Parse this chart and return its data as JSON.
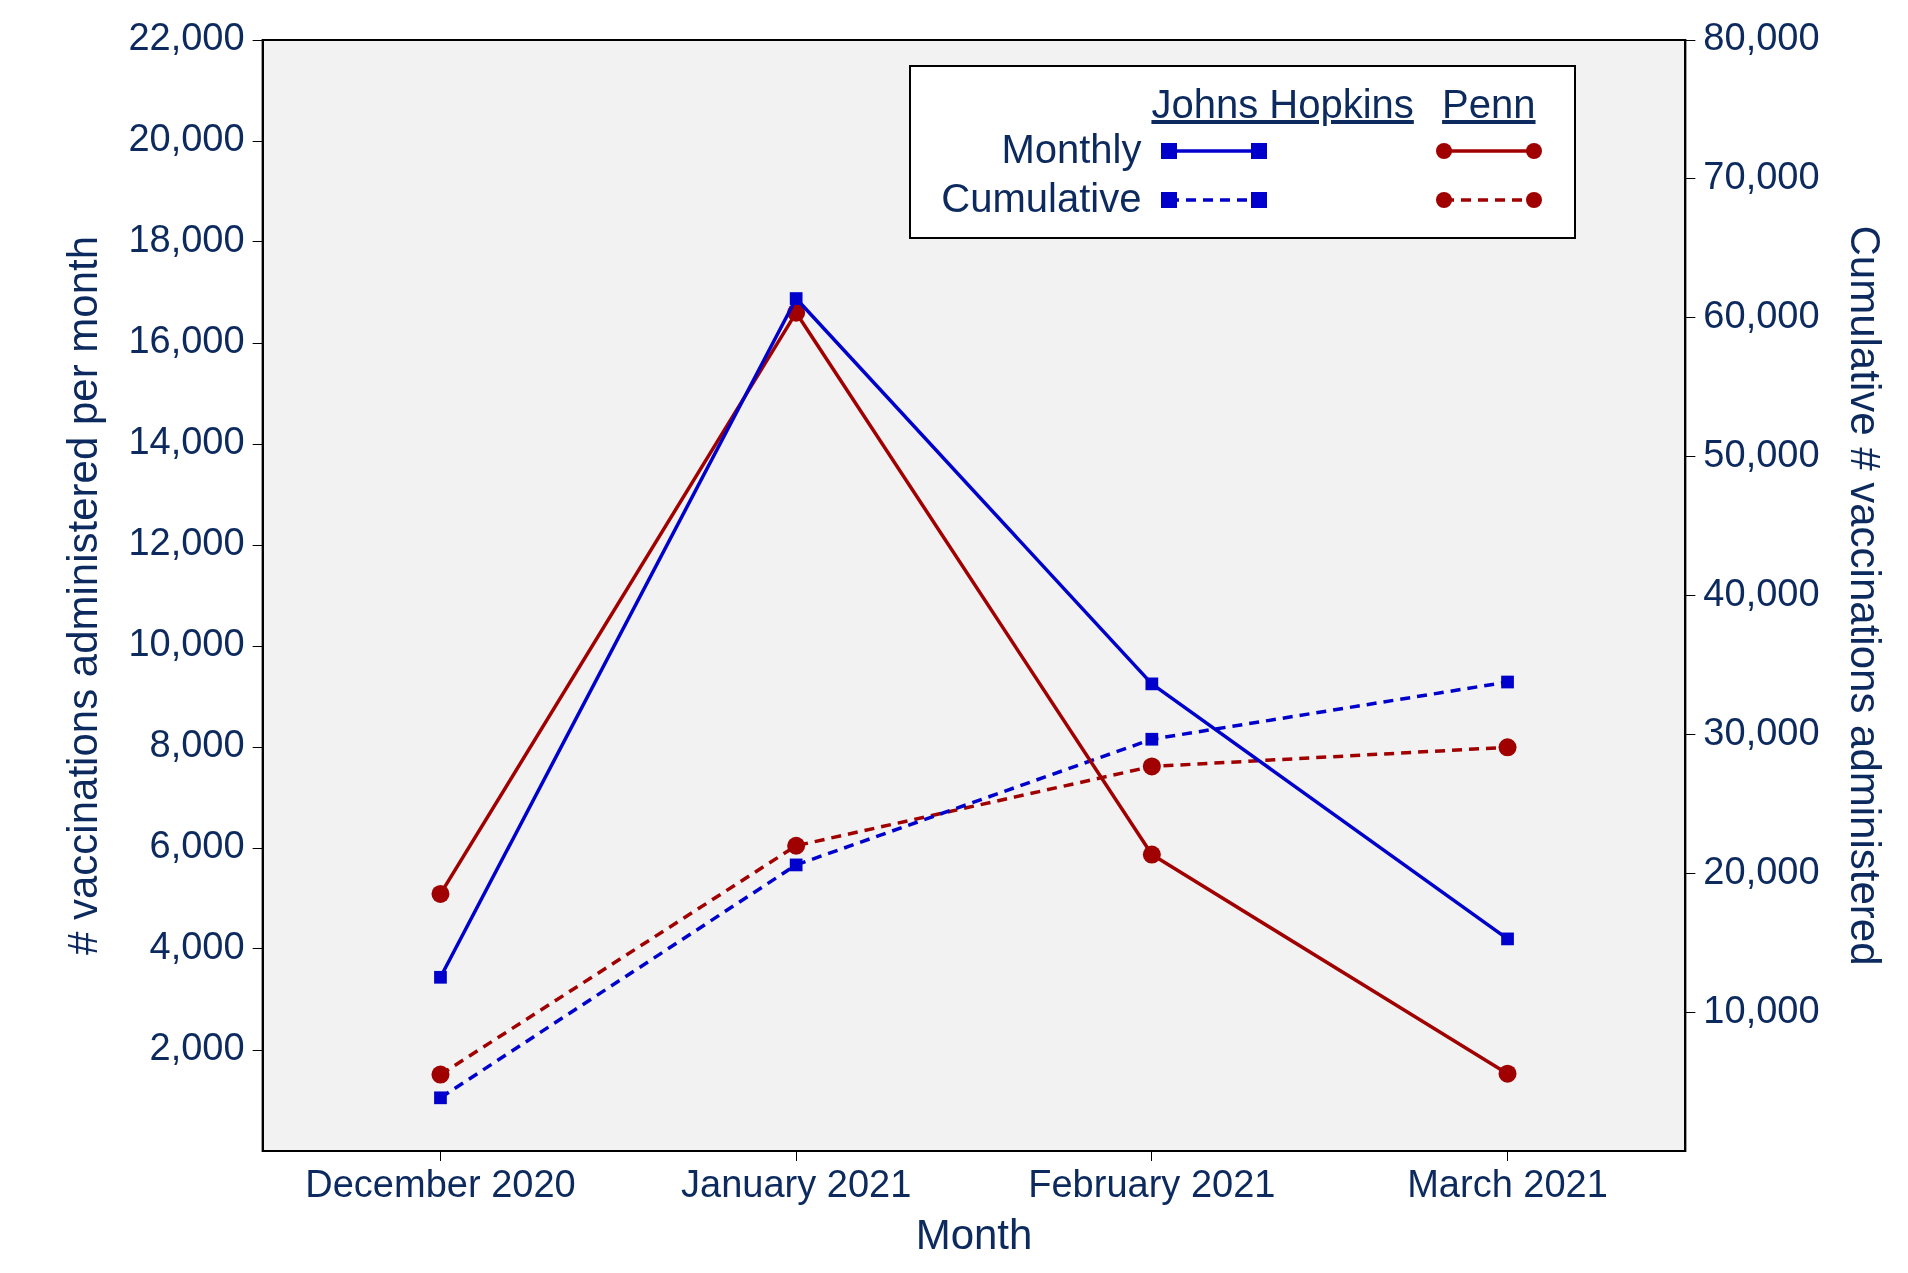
{
  "chart_data": {
    "type": "line",
    "xlabel": "Month",
    "ylabel": "# vaccinations administered per month",
    "y2label": "Cumulative # vaccinations administered",
    "categories": [
      "December 2020",
      "January 2021",
      "February 2021",
      "March 2021"
    ],
    "ylim": [
      0,
      22000
    ],
    "yticks": [
      {
        "value": 2000,
        "label": "2,000"
      },
      {
        "value": 4000,
        "label": "4,000"
      },
      {
        "value": 6000,
        "label": "6,000"
      },
      {
        "value": 8000,
        "label": "8,000"
      },
      {
        "value": 10000,
        "label": "10,000"
      },
      {
        "value": 12000,
        "label": "12,000"
      },
      {
        "value": 14000,
        "label": "14,000"
      },
      {
        "value": 16000,
        "label": "16,000"
      },
      {
        "value": 18000,
        "label": "18,000"
      },
      {
        "value": 20000,
        "label": "20,000"
      },
      {
        "value": 22000,
        "label": "22,000"
      }
    ],
    "y2lim": [
      0,
      80000
    ],
    "y2ticks": [
      {
        "value": 10000,
        "label": "10,000"
      },
      {
        "value": 20000,
        "label": "20,000"
      },
      {
        "value": 30000,
        "label": "30,000"
      },
      {
        "value": 40000,
        "label": "40,000"
      },
      {
        "value": 50000,
        "label": "50,000"
      },
      {
        "value": 60000,
        "label": "60,000"
      },
      {
        "value": 70000,
        "label": "70,000"
      },
      {
        "value": 80000,
        "label": "80,000"
      }
    ],
    "grid": false,
    "legend": "top right",
    "annotations": [
      "Johns Hopkins",
      "Penn"
    ],
    "series": [
      {
        "name": "Monthly",
        "color": "#0000cc",
        "marker": "square",
        "line_style": "solid",
        "values": [
          3440,
          16880,
          9250,
          4200
        ]
      },
      {
        "color": "#a00000",
        "marker": "circle",
        "line_style": "solid",
        "values": [
          5090,
          16600,
          5870,
          1530
        ]
      },
      {
        "name": "Cumulative",
        "color": "#0000cc",
        "marker": "square",
        "line_style": "dashed",
        "axis": "y2",
        "values": [
          3830,
          20600,
          29650,
          33770
        ]
      },
      {
        "color": "#a00000",
        "marker": "circle",
        "line_style": "dashed",
        "axis": "y2",
        "values": [
          5500,
          21980,
          27690,
          29070
        ]
      }
    ]
  }
}
